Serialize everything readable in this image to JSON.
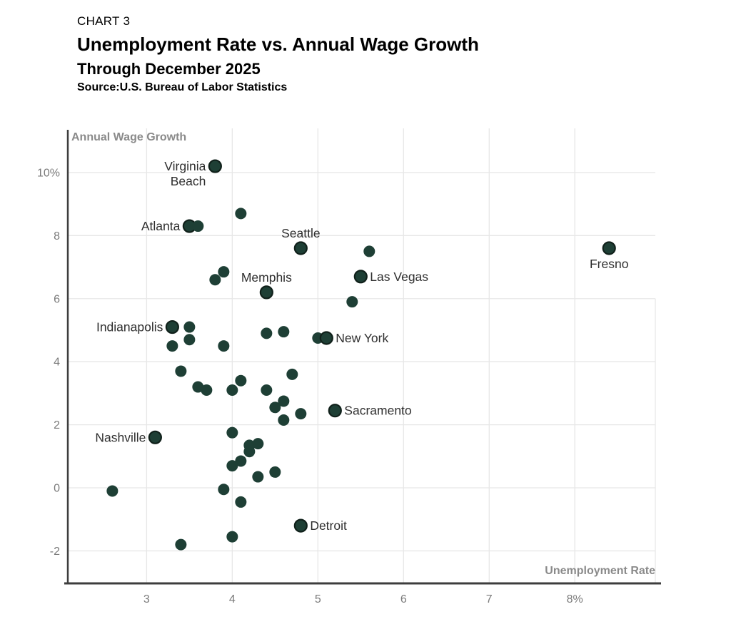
{
  "header": {
    "kicker": "CHART 3",
    "title": "Unemployment Rate vs. Annual Wage Growth",
    "subtitle": "Through December 2025",
    "source": "Source:U.S. Bureau of Labor Statistics"
  },
  "chart_data": {
    "type": "scatter",
    "title": "Unemployment Rate vs. Annual Wage Growth",
    "xlabel": "Unemployment Rate",
    "ylabel": "Annual Wage Growth",
    "xlim": [
      2.08,
      8.94
    ],
    "ylim": [
      -3.03,
      11.4
    ],
    "grid": true,
    "x_ticks": [
      {
        "v": 3,
        "label": "3"
      },
      {
        "v": 4,
        "label": "4"
      },
      {
        "v": 5,
        "label": "5"
      },
      {
        "v": 6,
        "label": "6"
      },
      {
        "v": 7,
        "label": "7"
      },
      {
        "v": 8,
        "label": "8%"
      }
    ],
    "y_ticks": [
      {
        "v": 10,
        "label": "10%"
      },
      {
        "v": 8,
        "label": "8"
      },
      {
        "v": 6,
        "label": "6"
      },
      {
        "v": 4,
        "label": "4"
      },
      {
        "v": 2,
        "label": "2"
      },
      {
        "v": 0,
        "label": "0"
      },
      {
        "v": -2,
        "label": "-2"
      }
    ],
    "colors": {
      "dot": "#1e3f35",
      "dot_outline": "#10201a",
      "grid": "#e7e7e7",
      "axis": "#3d3d3d",
      "tick_text": "#7a7a7a",
      "axis_title_text": "#8a8a8a",
      "city_label_text": "#2e2e2e"
    },
    "points": [
      {
        "x": 3.8,
        "y": 10.2,
        "label": "Virginia\nBeach",
        "pos": "left"
      },
      {
        "x": 4.1,
        "y": 8.7
      },
      {
        "x": 3.5,
        "y": 8.3,
        "label": "Atlanta",
        "pos": "left"
      },
      {
        "x": 3.6,
        "y": 8.3
      },
      {
        "x": 4.8,
        "y": 7.6,
        "label": "Seattle",
        "pos": "above"
      },
      {
        "x": 5.6,
        "y": 7.5
      },
      {
        "x": 8.4,
        "y": 7.6,
        "label": "Fresno",
        "pos": "below"
      },
      {
        "x": 3.9,
        "y": 6.85
      },
      {
        "x": 3.8,
        "y": 6.6
      },
      {
        "x": 4.4,
        "y": 6.2,
        "label": "Memphis",
        "pos": "above"
      },
      {
        "x": 5.5,
        "y": 6.7,
        "label": "Las Vegas",
        "pos": "right"
      },
      {
        "x": 5.4,
        "y": 5.9
      },
      {
        "x": 3.3,
        "y": 5.1,
        "label": "Indianapolis",
        "pos": "left"
      },
      {
        "x": 3.5,
        "y": 5.1
      },
      {
        "x": 3.5,
        "y": 4.7
      },
      {
        "x": 3.3,
        "y": 4.5
      },
      {
        "x": 3.9,
        "y": 4.5
      },
      {
        "x": 4.4,
        "y": 4.9
      },
      {
        "x": 4.6,
        "y": 4.95
      },
      {
        "x": 5.0,
        "y": 4.75
      },
      {
        "x": 5.1,
        "y": 4.75,
        "label": "New York",
        "pos": "right"
      },
      {
        "x": 3.4,
        "y": 3.7
      },
      {
        "x": 3.6,
        "y": 3.2
      },
      {
        "x": 3.7,
        "y": 3.1
      },
      {
        "x": 4.0,
        "y": 3.1
      },
      {
        "x": 4.1,
        "y": 3.4
      },
      {
        "x": 4.4,
        "y": 3.1
      },
      {
        "x": 4.7,
        "y": 3.6
      },
      {
        "x": 4.6,
        "y": 2.75
      },
      {
        "x": 4.5,
        "y": 2.55
      },
      {
        "x": 4.8,
        "y": 2.35
      },
      {
        "x": 4.6,
        "y": 2.15
      },
      {
        "x": 5.2,
        "y": 2.45,
        "label": "Sacramento",
        "pos": "right"
      },
      {
        "x": 3.1,
        "y": 1.6,
        "label": "Nashville",
        "pos": "left"
      },
      {
        "x": 4.0,
        "y": 1.75
      },
      {
        "x": 4.2,
        "y": 1.35
      },
      {
        "x": 4.3,
        "y": 1.4
      },
      {
        "x": 4.2,
        "y": 1.15
      },
      {
        "x": 4.1,
        "y": 0.85
      },
      {
        "x": 4.0,
        "y": 0.7
      },
      {
        "x": 4.5,
        "y": 0.5
      },
      {
        "x": 4.3,
        "y": 0.35
      },
      {
        "x": 2.6,
        "y": -0.1
      },
      {
        "x": 3.9,
        "y": -0.05
      },
      {
        "x": 4.1,
        "y": -0.45
      },
      {
        "x": 4.8,
        "y": -1.2,
        "label": "Detroit",
        "pos": "right"
      },
      {
        "x": 4.0,
        "y": -1.55
      },
      {
        "x": 3.4,
        "y": -1.8
      }
    ]
  }
}
